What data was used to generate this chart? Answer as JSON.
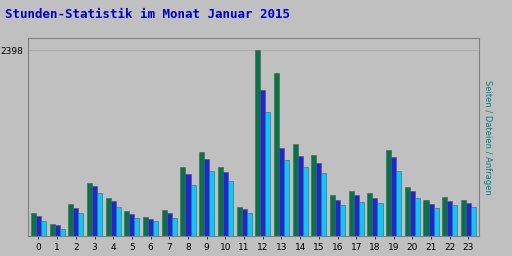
{
  "title": "Stunden-Statistik im Monat Januar 2015",
  "title_color": "#0000cc",
  "title_fontsize": 9,
  "background_color": "#c0c0c0",
  "plot_bg_color": "#c0c0c0",
  "ylabel": "Seiten / Dateien / Anfragen",
  "ylabel_color": "#008080",
  "ylabel_fontsize": 6,
  "hours": [
    0,
    1,
    2,
    3,
    4,
    5,
    6,
    7,
    8,
    9,
    10,
    11,
    12,
    13,
    14,
    15,
    16,
    17,
    18,
    19,
    20,
    21,
    22,
    23
  ],
  "seiten": [
    190,
    90,
    290,
    550,
    370,
    230,
    185,
    230,
    660,
    840,
    700,
    295,
    1600,
    980,
    880,
    810,
    390,
    430,
    420,
    840,
    490,
    350,
    400,
    370
  ],
  "dateien": [
    250,
    130,
    360,
    640,
    445,
    280,
    215,
    290,
    800,
    990,
    820,
    345,
    1880,
    1130,
    1030,
    940,
    465,
    520,
    490,
    1010,
    570,
    405,
    450,
    425
  ],
  "anfragen": [
    290,
    150,
    410,
    680,
    490,
    315,
    240,
    330,
    880,
    1080,
    890,
    375,
    2398,
    2100,
    1180,
    1040,
    520,
    580,
    545,
    1110,
    630,
    455,
    495,
    465
  ],
  "color_seiten": "#00ccff",
  "color_dateien": "#2222dd",
  "color_anfragen": "#007744",
  "bar_width": 0.27,
  "ylim": [
    0,
    2550
  ],
  "ytick_val": 2398,
  "grid_color": "#aaaaaa",
  "border_color": "#808080",
  "tick_fontsize": 6.5
}
